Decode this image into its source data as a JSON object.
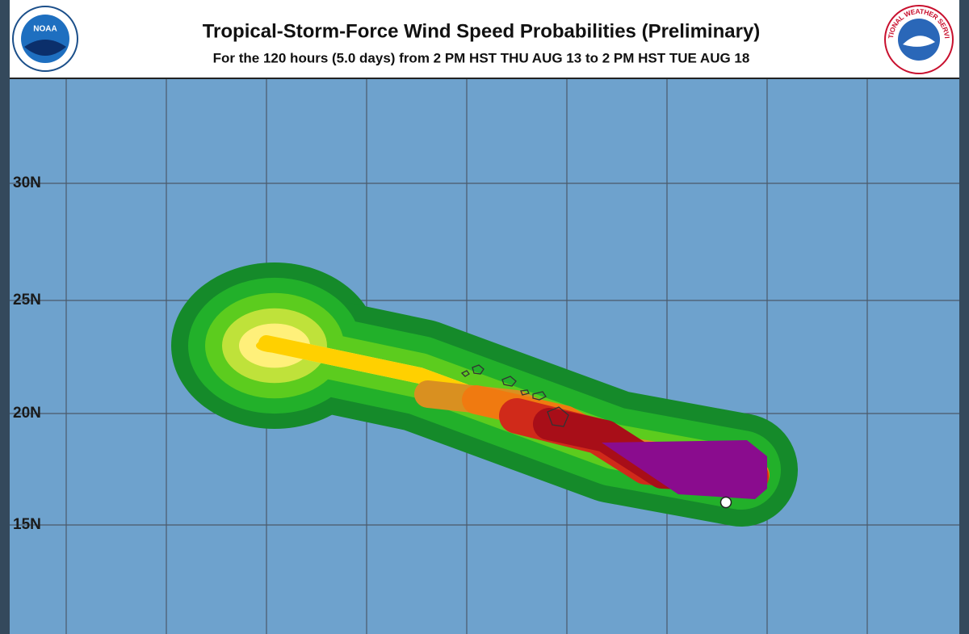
{
  "header": {
    "title": "Tropical-Storm-Force Wind Speed Probabilities (Preliminary)",
    "subtitle": "For the 120 hours (5.0 days) from 2 PM HST THU AUG 13 to 2 PM HST TUE AUG 18",
    "left_logo": "NOAA",
    "right_logo": "NATIONAL WEATHER SERVICE"
  },
  "map": {
    "lat_labels": [
      "30N",
      "25N",
      "20N",
      "15N"
    ]
  }
}
